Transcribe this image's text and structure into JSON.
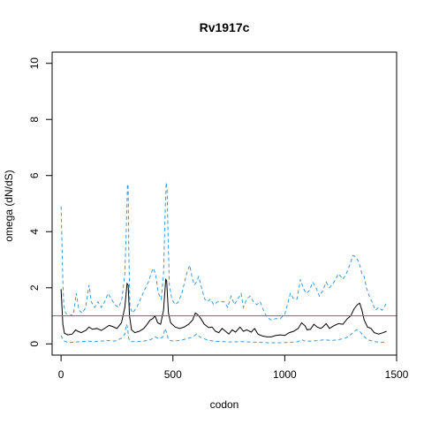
{
  "chart_data": {
    "type": "line",
    "title": "Rv1917c",
    "xlabel": "codon",
    "ylabel": "omega (dN/dS)",
    "xlim": [
      -40,
      1500
    ],
    "ylim": [
      -0.4,
      10.4
    ],
    "x_ticks": [
      0,
      500,
      1000,
      1500
    ],
    "y_ticks": [
      0,
      2,
      4,
      6,
      8,
      10
    ],
    "x_tick_labels": [
      "0",
      "500",
      "1000",
      "1500"
    ],
    "y_tick_labels": [
      "0",
      "2",
      "4",
      "6",
      "8",
      "10"
    ],
    "reference_line": {
      "y": 1.0,
      "color": "#c0507a"
    },
    "colors": {
      "estimate": "#000000",
      "ci": "#3a9ad9"
    },
    "series": [
      {
        "role": "estimate",
        "style": "solid",
        "points": [
          [
            0,
            1.95
          ],
          [
            8,
            0.7
          ],
          [
            15,
            0.38
          ],
          [
            30,
            0.32
          ],
          [
            50,
            0.35
          ],
          [
            65,
            0.5
          ],
          [
            75,
            0.45
          ],
          [
            90,
            0.4
          ],
          [
            110,
            0.48
          ],
          [
            125,
            0.6
          ],
          [
            140,
            0.52
          ],
          [
            160,
            0.55
          ],
          [
            180,
            0.48
          ],
          [
            200,
            0.58
          ],
          [
            215,
            0.66
          ],
          [
            230,
            0.62
          ],
          [
            250,
            0.55
          ],
          [
            270,
            0.75
          ],
          [
            285,
            1.3
          ],
          [
            295,
            2.15
          ],
          [
            300,
            2.1
          ],
          [
            306,
            1.0
          ],
          [
            315,
            0.5
          ],
          [
            330,
            0.4
          ],
          [
            350,
            0.45
          ],
          [
            370,
            0.55
          ],
          [
            385,
            0.7
          ],
          [
            398,
            0.85
          ],
          [
            410,
            0.9
          ],
          [
            420,
            1.0
          ],
          [
            432,
            0.75
          ],
          [
            445,
            0.7
          ],
          [
            458,
            1.2
          ],
          [
            468,
            2.3
          ],
          [
            472,
            2.25
          ],
          [
            480,
            1.1
          ],
          [
            490,
            0.75
          ],
          [
            510,
            0.6
          ],
          [
            530,
            0.55
          ],
          [
            550,
            0.6
          ],
          [
            570,
            0.7
          ],
          [
            588,
            0.85
          ],
          [
            600,
            1.1
          ],
          [
            610,
            1.05
          ],
          [
            625,
            0.9
          ],
          [
            640,
            0.7
          ],
          [
            660,
            0.58
          ],
          [
            675,
            0.6
          ],
          [
            690,
            0.45
          ],
          [
            705,
            0.4
          ],
          [
            720,
            0.55
          ],
          [
            735,
            0.45
          ],
          [
            750,
            0.35
          ],
          [
            765,
            0.5
          ],
          [
            780,
            0.42
          ],
          [
            800,
            0.6
          ],
          [
            815,
            0.45
          ],
          [
            830,
            0.5
          ],
          [
            850,
            0.42
          ],
          [
            865,
            0.55
          ],
          [
            880,
            0.35
          ],
          [
            900,
            0.28
          ],
          [
            920,
            0.25
          ],
          [
            940,
            0.25
          ],
          [
            960,
            0.3
          ],
          [
            980,
            0.32
          ],
          [
            1000,
            0.3
          ],
          [
            1020,
            0.4
          ],
          [
            1040,
            0.45
          ],
          [
            1060,
            0.55
          ],
          [
            1075,
            0.75
          ],
          [
            1090,
            0.65
          ],
          [
            1100,
            0.5
          ],
          [
            1115,
            0.52
          ],
          [
            1130,
            0.7
          ],
          [
            1145,
            0.6
          ],
          [
            1160,
            0.55
          ],
          [
            1170,
            0.6
          ],
          [
            1185,
            0.72
          ],
          [
            1200,
            0.55
          ],
          [
            1220,
            0.65
          ],
          [
            1240,
            0.72
          ],
          [
            1260,
            0.7
          ],
          [
            1280,
            0.9
          ],
          [
            1295,
            1.0
          ],
          [
            1310,
            1.25
          ],
          [
            1325,
            1.4
          ],
          [
            1335,
            1.45
          ],
          [
            1345,
            1.2
          ],
          [
            1355,
            0.85
          ],
          [
            1370,
            0.6
          ],
          [
            1385,
            0.55
          ],
          [
            1400,
            0.4
          ],
          [
            1420,
            0.35
          ],
          [
            1440,
            0.4
          ],
          [
            1455,
            0.45
          ]
        ]
      },
      {
        "role": "upper_ci",
        "style": "dashed",
        "points": [
          [
            0,
            4.9
          ],
          [
            4,
            3.6
          ],
          [
            8,
            2.2
          ],
          [
            12,
            1.4
          ],
          [
            20,
            1.1
          ],
          [
            35,
            1.0
          ],
          [
            55,
            1.05
          ],
          [
            68,
            1.8
          ],
          [
            80,
            1.2
          ],
          [
            95,
            1.1
          ],
          [
            110,
            1.3
          ],
          [
            125,
            2.1
          ],
          [
            135,
            1.5
          ],
          [
            150,
            1.3
          ],
          [
            165,
            1.5
          ],
          [
            180,
            1.3
          ],
          [
            195,
            1.5
          ],
          [
            210,
            1.8
          ],
          [
            225,
            1.6
          ],
          [
            240,
            1.4
          ],
          [
            258,
            1.3
          ],
          [
            272,
            1.6
          ],
          [
            285,
            2.5
          ],
          [
            292,
            4.2
          ],
          [
            297,
            5.7
          ],
          [
            300,
            5.6
          ],
          [
            303,
            3.2
          ],
          [
            308,
            1.3
          ],
          [
            320,
            1.1
          ],
          [
            338,
            1.3
          ],
          [
            355,
            1.6
          ],
          [
            372,
            1.9
          ],
          [
            390,
            2.2
          ],
          [
            402,
            2.5
          ],
          [
            412,
            2.7
          ],
          [
            422,
            2.5
          ],
          [
            435,
            1.8
          ],
          [
            448,
            1.6
          ],
          [
            458,
            2.5
          ],
          [
            465,
            4.6
          ],
          [
            470,
            5.75
          ],
          [
            474,
            5.5
          ],
          [
            478,
            4.0
          ],
          [
            484,
            2.1
          ],
          [
            495,
            1.6
          ],
          [
            510,
            1.4
          ],
          [
            525,
            1.5
          ],
          [
            540,
            1.8
          ],
          [
            555,
            2.3
          ],
          [
            565,
            2.6
          ],
          [
            575,
            2.8
          ],
          [
            585,
            2.4
          ],
          [
            595,
            2.1
          ],
          [
            605,
            2.2
          ],
          [
            615,
            2.4
          ],
          [
            628,
            2.0
          ],
          [
            642,
            1.6
          ],
          [
            655,
            1.5
          ],
          [
            668,
            1.6
          ],
          [
            682,
            1.4
          ],
          [
            700,
            1.5
          ],
          [
            715,
            1.5
          ],
          [
            730,
            1.5
          ],
          [
            745,
            1.3
          ],
          [
            760,
            1.7
          ],
          [
            775,
            1.4
          ],
          [
            790,
            1.6
          ],
          [
            805,
            1.8
          ],
          [
            815,
            1.3
          ],
          [
            830,
            1.6
          ],
          [
            845,
            1.7
          ],
          [
            860,
            1.5
          ],
          [
            875,
            1.4
          ],
          [
            890,
            1.5
          ],
          [
            905,
            1.2
          ],
          [
            920,
            0.95
          ],
          [
            940,
            0.85
          ],
          [
            960,
            0.9
          ],
          [
            980,
            0.9
          ],
          [
            1000,
            1.05
          ],
          [
            1012,
            1.4
          ],
          [
            1025,
            1.8
          ],
          [
            1040,
            1.6
          ],
          [
            1055,
            1.6
          ],
          [
            1070,
            2.3
          ],
          [
            1082,
            2.0
          ],
          [
            1095,
            1.8
          ],
          [
            1110,
            1.9
          ],
          [
            1125,
            2.2
          ],
          [
            1140,
            2.0
          ],
          [
            1155,
            1.7
          ],
          [
            1170,
            1.9
          ],
          [
            1185,
            2.2
          ],
          [
            1200,
            2.0
          ],
          [
            1220,
            2.2
          ],
          [
            1240,
            2.5
          ],
          [
            1260,
            2.3
          ],
          [
            1275,
            2.5
          ],
          [
            1290,
            2.8
          ],
          [
            1305,
            3.15
          ],
          [
            1318,
            3.1
          ],
          [
            1332,
            2.9
          ],
          [
            1345,
            2.5
          ],
          [
            1355,
            2.4
          ],
          [
            1365,
            2.0
          ],
          [
            1378,
            1.7
          ],
          [
            1390,
            1.5
          ],
          [
            1405,
            1.2
          ],
          [
            1420,
            1.3
          ],
          [
            1435,
            1.2
          ],
          [
            1448,
            1.35
          ],
          [
            1455,
            1.5
          ]
        ]
      },
      {
        "role": "lower_ci",
        "style": "dashed",
        "points": [
          [
            0,
            0.3
          ],
          [
            10,
            0.12
          ],
          [
            30,
            0.05
          ],
          [
            60,
            0.06
          ],
          [
            90,
            0.08
          ],
          [
            120,
            0.1
          ],
          [
            150,
            0.08
          ],
          [
            180,
            0.1
          ],
          [
            210,
            0.12
          ],
          [
            240,
            0.1
          ],
          [
            270,
            0.2
          ],
          [
            285,
            0.35
          ],
          [
            292,
            0.7
          ],
          [
            297,
            0.6
          ],
          [
            302,
            0.2
          ],
          [
            310,
            0.08
          ],
          [
            340,
            0.08
          ],
          [
            370,
            0.1
          ],
          [
            400,
            0.15
          ],
          [
            420,
            0.25
          ],
          [
            440,
            0.18
          ],
          [
            455,
            0.25
          ],
          [
            465,
            0.55
          ],
          [
            472,
            0.4
          ],
          [
            480,
            0.15
          ],
          [
            500,
            0.1
          ],
          [
            530,
            0.12
          ],
          [
            560,
            0.18
          ],
          [
            590,
            0.25
          ],
          [
            605,
            0.35
          ],
          [
            620,
            0.25
          ],
          [
            650,
            0.15
          ],
          [
            680,
            0.1
          ],
          [
            720,
            0.08
          ],
          [
            760,
            0.07
          ],
          [
            800,
            0.08
          ],
          [
            840,
            0.07
          ],
          [
            880,
            0.06
          ],
          [
            920,
            0.04
          ],
          [
            960,
            0.04
          ],
          [
            1000,
            0.05
          ],
          [
            1030,
            0.06
          ],
          [
            1060,
            0.08
          ],
          [
            1075,
            0.15
          ],
          [
            1090,
            0.1
          ],
          [
            1120,
            0.1
          ],
          [
            1150,
            0.12
          ],
          [
            1180,
            0.15
          ],
          [
            1210,
            0.12
          ],
          [
            1240,
            0.15
          ],
          [
            1270,
            0.2
          ],
          [
            1290,
            0.3
          ],
          [
            1305,
            0.4
          ],
          [
            1320,
            0.5
          ],
          [
            1335,
            0.45
          ],
          [
            1350,
            0.3
          ],
          [
            1370,
            0.15
          ],
          [
            1400,
            0.08
          ],
          [
            1430,
            0.05
          ],
          [
            1455,
            0.06
          ]
        ]
      }
    ]
  }
}
